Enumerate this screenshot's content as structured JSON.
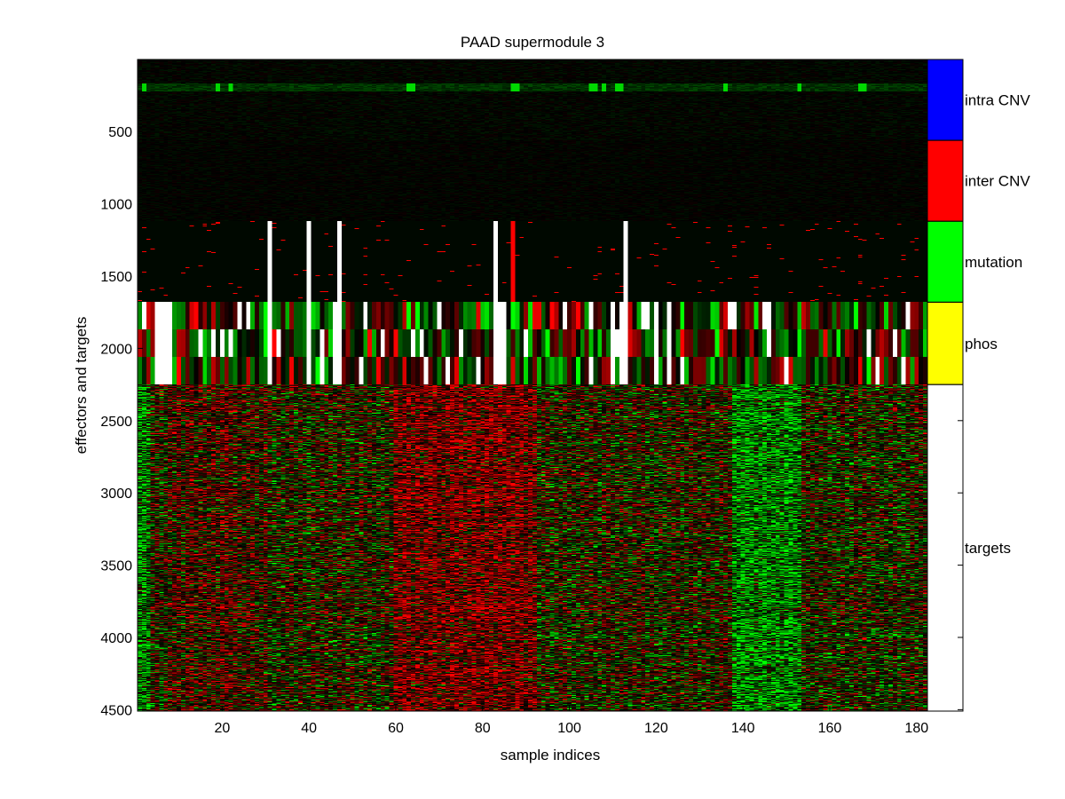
{
  "chart_data": {
    "type": "heatmap",
    "title": "PAAD supermodule 3",
    "xlabel": "sample indices",
    "ylabel": "effectors and targets",
    "xlim": [
      0.5,
      182.5
    ],
    "ylim": [
      1,
      4510
    ],
    "n_samples": 182,
    "y_direction": "top-to-bottom",
    "x_ticks": [
      20,
      40,
      60,
      80,
      100,
      120,
      140,
      160,
      180
    ],
    "y_ticks": [
      500,
      1000,
      1500,
      2000,
      2500,
      3000,
      3500,
      4000,
      4500
    ],
    "colormap": {
      "low": "#00ff00",
      "mid": "#000000",
      "high": "#ff0000",
      "missing": "#ffffff"
    },
    "row_blocks": [
      {
        "category": "intra CNV",
        "rows": [
          1,
          560
        ],
        "color": "#0000ff"
      },
      {
        "category": "inter CNV",
        "rows": [
          561,
          1120
        ],
        "color": "#ff0000"
      },
      {
        "category": "mutation",
        "rows": [
          1121,
          1680
        ],
        "color": "#00ff00"
      },
      {
        "category": "phos",
        "rows": [
          1681,
          2250
        ],
        "color": "#ffff00"
      },
      {
        "category": "targets",
        "rows": [
          2251,
          4510
        ],
        "color": "#ffffff"
      }
    ],
    "missing_sample_columns": {
      "mutation": [
        31,
        40,
        47,
        83,
        113
      ],
      "phos": [
        5,
        6,
        7,
        8,
        31,
        40,
        46,
        47,
        83,
        84,
        85,
        110,
        112,
        113,
        120,
        123
      ]
    },
    "mutation_all_samples_column": [
      87
    ],
    "highlighted_mutation_samples_column_green": [
      2,
      19,
      22,
      63,
      64,
      87,
      88,
      105,
      106,
      108,
      111,
      112,
      136,
      153,
      167,
      168
    ],
    "legend_placement": "right-side category bar",
    "grid": false
  }
}
